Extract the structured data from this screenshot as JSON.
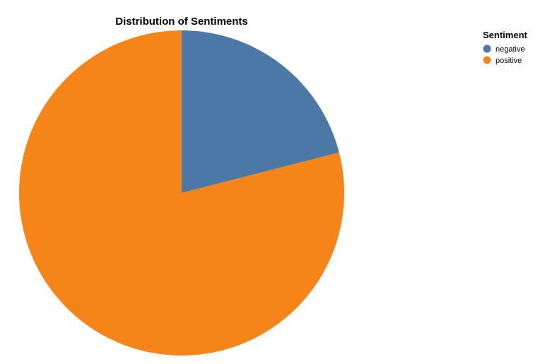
{
  "chart_data": {
    "type": "pie",
    "title": "Distribution of Sentiments",
    "legend": {
      "title": "Sentiment",
      "placement": "top-right"
    },
    "categories": [
      "negative",
      "positive"
    ],
    "values": [
      21,
      79
    ],
    "value_unit": "percent (estimated)",
    "colors": [
      "#4c78a8",
      "#f58518"
    ]
  }
}
